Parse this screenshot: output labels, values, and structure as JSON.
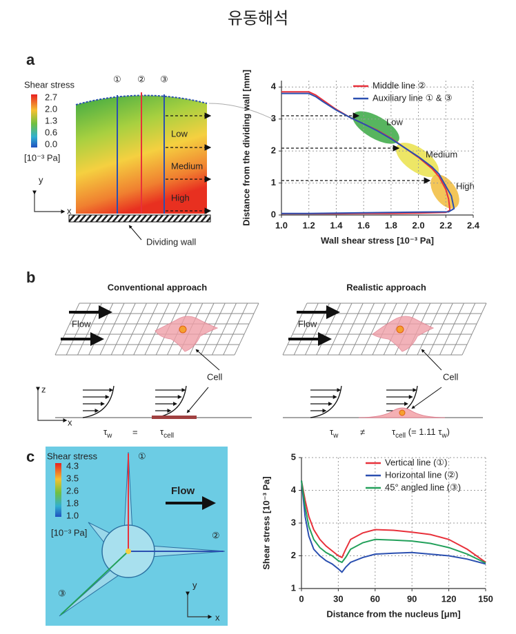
{
  "title": "유동해석",
  "panel_a": {
    "label": "a",
    "colorbar": {
      "title": "Shear stress",
      "ticks": [
        "2.7",
        "2.0",
        "1.3",
        "0.6",
        "0.0"
      ],
      "unit": "[10⁻³ Pa]"
    },
    "line_markers": [
      "①",
      "②",
      "③"
    ],
    "regions": [
      "Low",
      "Medium",
      "High"
    ],
    "wall_label": "Dividing wall",
    "axis_x": "x",
    "axis_y": "y"
  },
  "panel_b": {
    "label": "b",
    "conventional": {
      "title": "Conventional  approach",
      "flow": "Flow",
      "cell": "Cell",
      "tau": "τ",
      "sub_w": "w",
      "op": "=",
      "sub_cell": "cell"
    },
    "realistic": {
      "title": "Realistic  approach",
      "flow": "Flow",
      "cell": "Cell",
      "tau": "τ",
      "sub_w": "w",
      "op": "≠",
      "sub_cell": "cell",
      "factor_open": " (= 1.11 τ",
      "factor_close": ")"
    },
    "axis_z": "z",
    "axis_x": "x"
  },
  "panel_c": {
    "label": "c",
    "colorbar": {
      "title": "Shear stress",
      "ticks": [
        "4.3",
        "3.5",
        "2.6",
        "1.8",
        "1.0"
      ],
      "unit": "[10⁻³ Pa]"
    },
    "flow": "Flow",
    "line_markers": [
      "①",
      "②",
      "③"
    ],
    "axis_x": "x",
    "axis_y": "y"
  },
  "chart_data": [
    {
      "type": "line",
      "x_label": "Wall shear stress [10⁻³ Pa]",
      "y_label": "Distance from the dividing wall [mm]",
      "annotations": [
        "Low",
        "Medium",
        "High"
      ],
      "xlim": [
        1.0,
        2.4
      ],
      "ylim": [
        0,
        4.2
      ],
      "xticks": [
        {
          "value": 1.0,
          "label": "1.0"
        },
        1.2,
        1.4,
        1.6,
        1.8,
        {
          "value": 2.0,
          "label": "2.0"
        },
        2.2,
        2.4
      ],
      "yticks": [
        0,
        1,
        2,
        3,
        4
      ],
      "grid": true,
      "legend": "upper right",
      "series": [
        {
          "name": "Middle line ②",
          "color": "#e8303a",
          "x": [
            1.0,
            1.1,
            1.2,
            1.25,
            1.3,
            1.4,
            1.5,
            1.6,
            1.7,
            1.8,
            1.9,
            2.0,
            2.1,
            2.15,
            2.2,
            2.22,
            2.23,
            2.2,
            2.0,
            1.8,
            1.6,
            1.4,
            1.2,
            1.0
          ],
          "values": [
            3.85,
            3.85,
            3.85,
            3.75,
            3.6,
            3.3,
            3.05,
            2.85,
            2.65,
            2.4,
            2.1,
            1.8,
            1.45,
            1.2,
            0.8,
            0.5,
            0.15,
            0.08,
            0.06,
            0.05,
            0.05,
            0.04,
            0.04,
            0.04
          ]
        },
        {
          "name": "Auxiliary  line ① & ③",
          "color": "#2a4fb0",
          "x": [
            1.0,
            1.1,
            1.2,
            1.25,
            1.3,
            1.4,
            1.5,
            1.6,
            1.7,
            1.8,
            1.9,
            2.0,
            2.1,
            2.15,
            2.2,
            2.24,
            2.26,
            2.22,
            2.0,
            1.8,
            1.6,
            1.4,
            1.2,
            1.0
          ],
          "values": [
            3.8,
            3.8,
            3.8,
            3.7,
            3.55,
            3.28,
            3.05,
            2.85,
            2.63,
            2.38,
            2.1,
            1.82,
            1.5,
            1.28,
            0.9,
            0.6,
            0.2,
            0.1,
            0.09,
            0.08,
            0.07,
            0.06,
            0.05,
            0.05
          ]
        }
      ]
    },
    {
      "type": "line",
      "x_label": "Distance from the nucleus [μm]",
      "y_label": "Shear stress [10⁻³ Pa]",
      "xlim": [
        0,
        150
      ],
      "ylim": [
        1,
        5
      ],
      "xticks": [
        0,
        30,
        60,
        90,
        120,
        150
      ],
      "yticks": [
        1,
        2,
        3,
        4,
        5
      ],
      "grid": true,
      "legend": "upper right",
      "series": [
        {
          "name": "Vertical line (①)",
          "color": "#e8303a",
          "x": [
            0,
            3,
            6,
            10,
            15,
            20,
            25,
            30,
            33,
            36,
            40,
            50,
            60,
            75,
            90,
            105,
            120,
            135,
            150
          ],
          "values": [
            4.3,
            3.7,
            3.2,
            2.8,
            2.5,
            2.3,
            2.15,
            2.0,
            1.95,
            2.2,
            2.5,
            2.7,
            2.8,
            2.78,
            2.72,
            2.65,
            2.5,
            2.2,
            1.8
          ]
        },
        {
          "name": "Horizontal line (②)",
          "color": "#2a4fb0",
          "x": [
            0,
            3,
            6,
            10,
            15,
            20,
            25,
            30,
            33,
            36,
            40,
            50,
            60,
            75,
            90,
            105,
            120,
            135,
            150
          ],
          "values": [
            4.3,
            3.2,
            2.6,
            2.2,
            2.0,
            1.85,
            1.75,
            1.6,
            1.5,
            1.65,
            1.8,
            1.95,
            2.05,
            2.08,
            2.1,
            2.05,
            2.0,
            1.9,
            1.75
          ]
        },
        {
          "name": "45° angled line (③)",
          "color": "#22a05a",
          "x": [
            0,
            3,
            6,
            10,
            15,
            20,
            25,
            30,
            33,
            36,
            40,
            50,
            60,
            75,
            90,
            105,
            120,
            135,
            150
          ],
          "values": [
            4.3,
            3.5,
            2.9,
            2.5,
            2.25,
            2.1,
            2.0,
            1.85,
            1.8,
            1.95,
            2.2,
            2.4,
            2.5,
            2.48,
            2.45,
            2.38,
            2.25,
            2.05,
            1.78
          ]
        }
      ]
    }
  ]
}
